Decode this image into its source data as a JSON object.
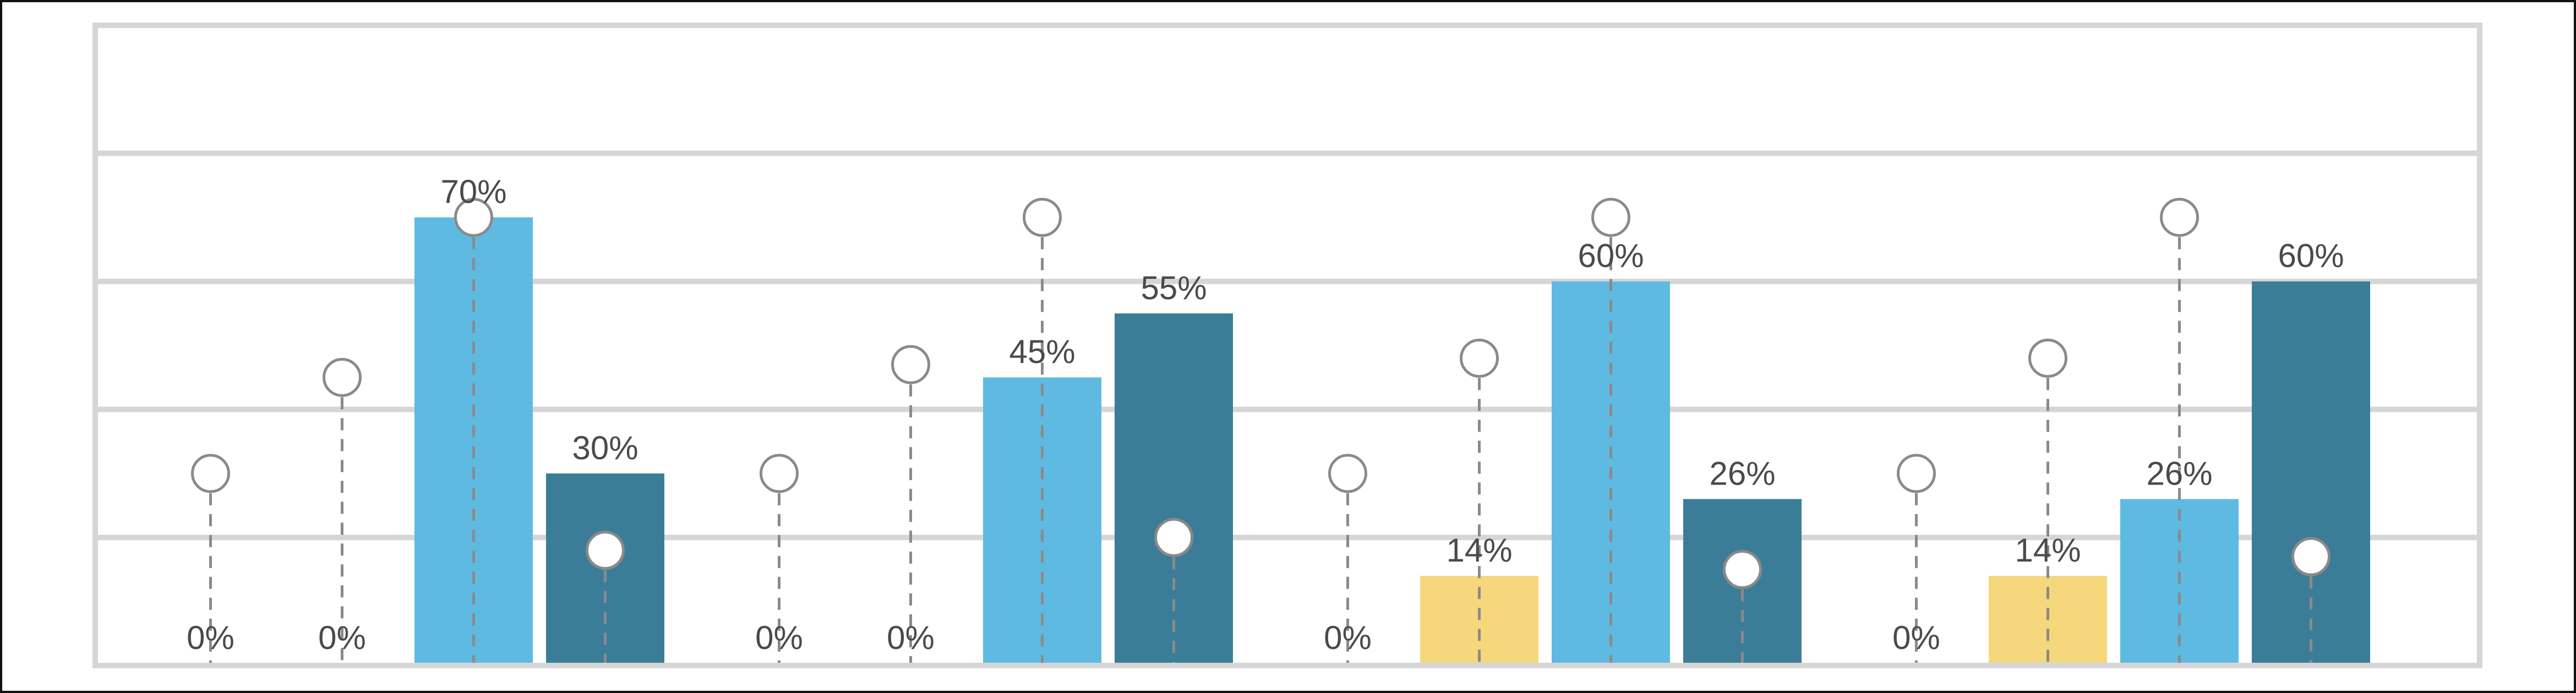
{
  "chart_data": {
    "type": "bar",
    "ylim": [
      0,
      100
    ],
    "grid": true,
    "groups": [
      {
        "values": [
          0,
          0,
          70,
          30
        ],
        "labels": [
          "0%",
          "0%",
          "70%",
          "30%"
        ],
        "markers": [
          30,
          45,
          70,
          18
        ]
      },
      {
        "values": [
          0,
          0,
          45,
          55
        ],
        "labels": [
          "0%",
          "0%",
          "45%",
          "55%"
        ],
        "markers": [
          30,
          47,
          70,
          20
        ]
      },
      {
        "values": [
          0,
          14,
          60,
          26
        ],
        "labels": [
          "0%",
          "14%",
          "60%",
          "26%"
        ],
        "markers": [
          30,
          48,
          70,
          15
        ]
      },
      {
        "values": [
          0,
          14,
          26,
          60
        ],
        "labels": [
          "0%",
          "14%",
          "26%",
          "60%"
        ],
        "markers": [
          30,
          48,
          70,
          17
        ]
      }
    ],
    "series_colors": [
      "#f5d77c",
      "#f5d77c",
      "#5fbae2",
      "#3b7d98"
    ]
  }
}
